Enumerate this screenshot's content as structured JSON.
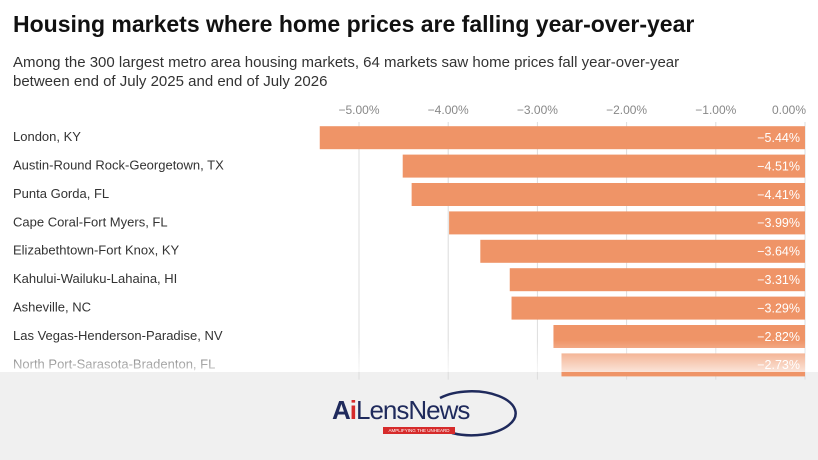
{
  "chart_data": {
    "type": "bar",
    "orientation": "horizontal",
    "title": "Housing markets where home prices are falling year-over-year",
    "subtitle": [
      "Among the 300 largest metro area housing markets, 64 markets saw home prices fall year-over-year",
      "between end of July 2025 and end of July 2026"
    ],
    "categories": [
      "London, KY",
      "Austin-Round Rock-Georgetown, TX",
      "Punta Gorda, FL",
      "Cape Coral-Fort Myers, FL",
      "Elizabethtown-Fort Knox, KY",
      "Kahului-Wailuku-Lahaina, HI",
      "Asheville, NC",
      "Las Vegas-Henderson-Paradise, NV",
      "North Port-Sarasota-Bradenton, FL"
    ],
    "values": [
      -5.44,
      -4.51,
      -4.41,
      -3.99,
      -3.64,
      -3.31,
      -3.29,
      -2.82,
      -2.73
    ],
    "value_labels": [
      "−5.44%",
      "−4.51%",
      "−4.41%",
      "−3.99%",
      "−3.64%",
      "−3.31%",
      "−3.29%",
      "−2.82%",
      "−2.73%"
    ],
    "color": "#ef9467",
    "xlim": [
      -5.5,
      0
    ],
    "xticks": [
      {
        "value": -5,
        "label": "−5.00%"
      },
      {
        "value": -4,
        "label": "−4.00%"
      },
      {
        "value": -3,
        "label": "−3.00%"
      },
      {
        "value": -2,
        "label": "−2.00%"
      },
      {
        "value": -1,
        "label": "−1.00%"
      },
      {
        "value": 0,
        "label": "0.00%"
      }
    ],
    "grid": true
  },
  "branding": {
    "a": "A",
    "i": "i",
    "rest": "LensNews",
    "tagline": "AMPLIFYING THE UNHEARD"
  }
}
